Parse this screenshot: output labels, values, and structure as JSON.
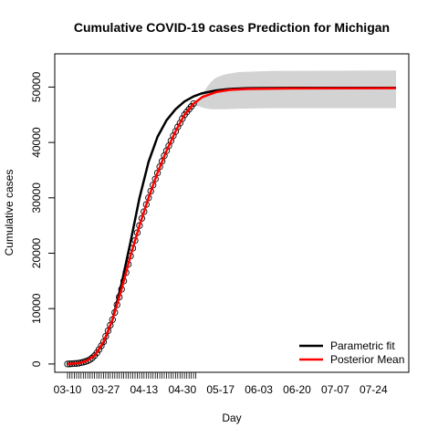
{
  "chart_data": {
    "type": "line",
    "title": "Cumulative COVID-19 cases Prediction for Michigan",
    "xlabel": "Day",
    "ylabel": "Cumulative cases",
    "x_tick_labels": [
      "03-10",
      "03-27",
      "04-13",
      "04-30",
      "05-17",
      "06-03",
      "06-20",
      "07-07",
      "07-24"
    ],
    "x_tick_day_index": [
      0,
      17,
      34,
      51,
      68,
      85,
      102,
      119,
      136
    ],
    "x_range_days": [
      0,
      146
    ],
    "observed_tick_days": [
      0,
      57
    ],
    "y_ticks": [
      0,
      10000,
      20000,
      30000,
      40000,
      50000
    ],
    "ylim": [
      -1500,
      56000
    ],
    "grid": false,
    "legend_position": "bottom-right",
    "colors": {
      "parametric_fit": "#000000",
      "posterior_mean": "#ff0000",
      "observed": "#000000",
      "credible_band": "#d3d3d3"
    },
    "legend": [
      {
        "label": "Parametric fit",
        "color": "#000000"
      },
      {
        "label": "Posterior Mean",
        "color": "#ff0000"
      }
    ],
    "series": [
      {
        "name": "Parametric fit",
        "points": [
          [
            0,
            0
          ],
          [
            4,
            120
          ],
          [
            8,
            480
          ],
          [
            12,
            1500
          ],
          [
            16,
            3800
          ],
          [
            20,
            8000
          ],
          [
            24,
            14500
          ],
          [
            28,
            22000
          ],
          [
            32,
            30000
          ],
          [
            36,
            36500
          ],
          [
            40,
            41000
          ],
          [
            44,
            44000
          ],
          [
            48,
            46000
          ],
          [
            52,
            47400
          ],
          [
            56,
            48300
          ],
          [
            60,
            48900
          ],
          [
            66,
            49400
          ],
          [
            72,
            49650
          ],
          [
            80,
            49800
          ],
          [
            100,
            49850
          ],
          [
            146,
            49850
          ]
        ]
      },
      {
        "name": "Posterior Mean",
        "points": [
          [
            0,
            0
          ],
          [
            4,
            100
          ],
          [
            8,
            450
          ],
          [
            12,
            1500
          ],
          [
            16,
            4000
          ],
          [
            20,
            8000
          ],
          [
            24,
            13500
          ],
          [
            28,
            19500
          ],
          [
            32,
            25000
          ],
          [
            36,
            30000
          ],
          [
            40,
            34500
          ],
          [
            44,
            38500
          ],
          [
            48,
            42000
          ],
          [
            52,
            45000
          ],
          [
            56,
            47000
          ],
          [
            60,
            48200
          ],
          [
            66,
            49100
          ],
          [
            72,
            49500
          ],
          [
            80,
            49650
          ],
          [
            100,
            49750
          ],
          [
            146,
            49800
          ]
        ]
      }
    ],
    "credible_band": {
      "points": [
        [
          55,
          46800,
          46800
        ],
        [
          58,
          46600,
          47600
        ],
        [
          60,
          46300,
          48700
        ],
        [
          62,
          46100,
          50000
        ],
        [
          64,
          46000,
          51000
        ],
        [
          66,
          46000,
          51700
        ],
        [
          70,
          46000,
          52300
        ],
        [
          76,
          46100,
          52700
        ],
        [
          90,
          46200,
          52900
        ],
        [
          146,
          46200,
          53000
        ]
      ]
    },
    "observed": [
      [
        0,
        0
      ],
      [
        1,
        20
      ],
      [
        2,
        50
      ],
      [
        3,
        80
      ],
      [
        4,
        100
      ],
      [
        5,
        150
      ],
      [
        6,
        250
      ],
      [
        7,
        330
      ],
      [
        8,
        450
      ],
      [
        9,
        600
      ],
      [
        10,
        800
      ],
      [
        11,
        1100
      ],
      [
        12,
        1500
      ],
      [
        13,
        2000
      ],
      [
        14,
        2600
      ],
      [
        15,
        3300
      ],
      [
        16,
        4000
      ],
      [
        17,
        5000
      ],
      [
        18,
        6000
      ],
      [
        19,
        7000
      ],
      [
        20,
        8000
      ],
      [
        21,
        9300
      ],
      [
        22,
        10700
      ],
      [
        23,
        12100
      ],
      [
        24,
        13500
      ],
      [
        25,
        15000
      ],
      [
        26,
        16500
      ],
      [
        27,
        18000
      ],
      [
        28,
        19500
      ],
      [
        29,
        20900
      ],
      [
        30,
        22300
      ],
      [
        31,
        23700
      ],
      [
        32,
        25000
      ],
      [
        33,
        26300
      ],
      [
        34,
        27500
      ],
      [
        35,
        28800
      ],
      [
        36,
        30000
      ],
      [
        37,
        31200
      ],
      [
        38,
        32300
      ],
      [
        39,
        33400
      ],
      [
        40,
        34500
      ],
      [
        41,
        35600
      ],
      [
        42,
        36600
      ],
      [
        43,
        37600
      ],
      [
        44,
        38500
      ],
      [
        45,
        39400
      ],
      [
        46,
        40300
      ],
      [
        47,
        41200
      ],
      [
        48,
        42000
      ],
      [
        49,
        42800
      ],
      [
        50,
        43500
      ],
      [
        51,
        44300
      ],
      [
        52,
        45000
      ],
      [
        53,
        45500
      ],
      [
        54,
        46000
      ],
      [
        55,
        46500
      ],
      [
        56,
        47000
      ]
    ]
  }
}
